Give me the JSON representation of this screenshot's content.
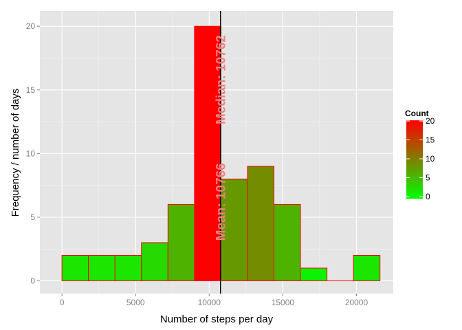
{
  "chart_data": {
    "type": "bar",
    "subtype": "histogram",
    "title": "",
    "xlabel": "Number of steps per day",
    "ylabel": "Frequency / number of days",
    "xlim": [
      -1500,
      22500
    ],
    "ylim": [
      -1,
      21.2
    ],
    "x_ticks": [
      0,
      5000,
      10000,
      15000,
      20000
    ],
    "x_tick_labels": [
      "0",
      "5000",
      "10000",
      "15000",
      "20000"
    ],
    "y_ticks": [
      0,
      5,
      10,
      15,
      20
    ],
    "y_tick_labels": [
      "0",
      "5",
      "10",
      "15",
      "20"
    ],
    "grid": true,
    "bins": [
      {
        "x0": 0,
        "x1": 1800,
        "count": 2
      },
      {
        "x0": 1800,
        "x1": 3600,
        "count": 2
      },
      {
        "x0": 3600,
        "x1": 5400,
        "count": 2
      },
      {
        "x0": 5400,
        "x1": 7200,
        "count": 3
      },
      {
        "x0": 7200,
        "x1": 9000,
        "count": 6
      },
      {
        "x0": 9000,
        "x1": 10800,
        "count": 20
      },
      {
        "x0": 10800,
        "x1": 12600,
        "count": 8
      },
      {
        "x0": 12600,
        "x1": 14400,
        "count": 9
      },
      {
        "x0": 14400,
        "x1": 16200,
        "count": 6
      },
      {
        "x0": 16200,
        "x1": 18000,
        "count": 1
      },
      {
        "x0": 18000,
        "x1": 19800,
        "count": 0
      },
      {
        "x0": 19800,
        "x1": 21600,
        "count": 2
      }
    ],
    "bar_outline_color": "#ff0000",
    "fill_gradient": {
      "low": "#00ff00",
      "high": "#ff0000",
      "min": 0,
      "max": 20
    },
    "vlines": [
      {
        "name": "mean",
        "x": 10766,
        "style": "solid",
        "color": "#000000"
      },
      {
        "name": "median",
        "x": 10762,
        "style": "dashed",
        "color": "#000000"
      }
    ],
    "annotations": [
      {
        "text": "Mean: 10766",
        "x": 10766,
        "y": 6.2,
        "rotate": -90,
        "color": "#f08080"
      },
      {
        "text": "Median: 10762",
        "x": 10766,
        "y": 15.8,
        "rotate": -90,
        "color": "#f08080"
      }
    ],
    "legend": {
      "title": "Count",
      "position": "right",
      "ticks": [
        0,
        5,
        10,
        15,
        20
      ],
      "tick_labels": [
        "0",
        "5",
        "10",
        "15",
        "20"
      ]
    }
  }
}
